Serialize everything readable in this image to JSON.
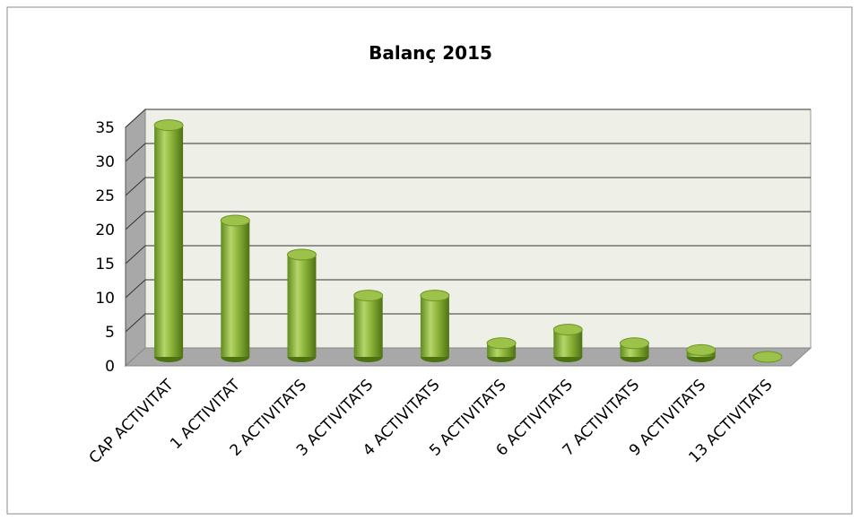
{
  "chart_data": {
    "type": "bar",
    "title": "Balanç 2015",
    "categories": [
      "CAP ACTIVITAT",
      "1 ACTIVITAT",
      "2 ACTIVITATS",
      "3 ACTIVITATS",
      "4 ACTIVITATS",
      "5 ACTIVITATS",
      "6 ACTIVITATS",
      "7 ACTIVITATS",
      "9 ACTIVITATS",
      "13 ACTIVITATS"
    ],
    "values": [
      34,
      20,
      15,
      9,
      9,
      2,
      4,
      2,
      1,
      0
    ],
    "color": "#8db33a",
    "ylim": [
      0,
      35
    ],
    "yticks": [
      0,
      5,
      10,
      15,
      20,
      25,
      30,
      35
    ],
    "grid": true
  }
}
